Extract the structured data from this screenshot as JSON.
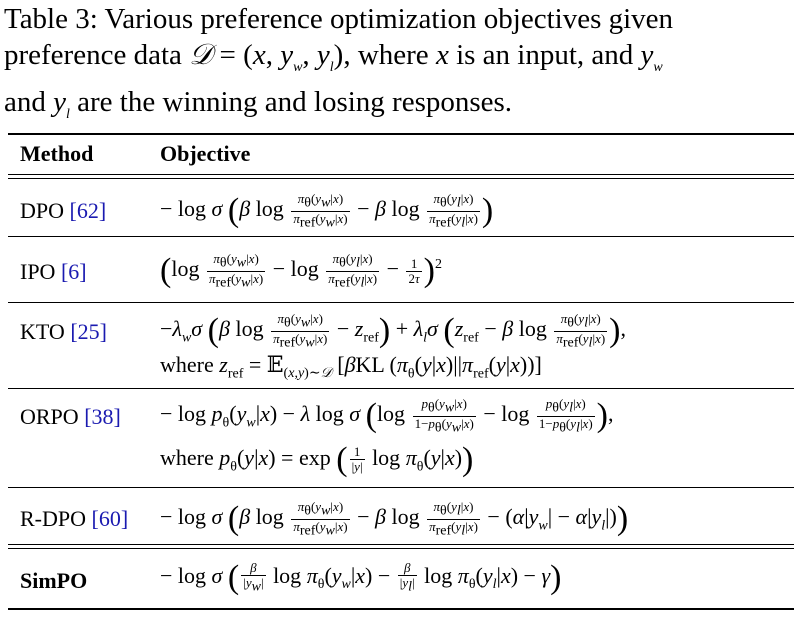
{
  "caption": {
    "line1": "Table 3:  Various preference optimization objectives given",
    "line2": "preference data 𝒟 = (x, y_w, y_l), where x is an input, and y_w",
    "line3": "and y_l are the winning and losing responses."
  },
  "table": {
    "headers": [
      "Method",
      "Objective"
    ],
    "rows": [
      {
        "method": "DPO ",
        "cite": "[62]",
        "formula": "−log σ (β log πθ(yw|x)/πref(yw|x) − β log πθ(yl|x)/πref(yl|x))"
      },
      {
        "method": "IPO ",
        "cite": "[6]",
        "formula": "(log πθ(yw|x)/πref(yw|x) − log πθ(yl|x)/πref(yl|x) − 1/2τ)²"
      },
      {
        "method": "KTO ",
        "cite": "[25]",
        "formula": "−λwσ (β log πθ(yw|x)/πref(yw|x) − zref) + λlσ (zref − β log πθ(yl|x)/πref(yl|x)),",
        "formula2": "where zref = 𝔼(x,y)∼𝒟 [βKL (πθ(y|x)||πref(y|x))]"
      },
      {
        "method": "ORPO ",
        "cite": "[38]",
        "formula": "−log pθ(yw|x) − λ log σ (log pθ(yw|x)/1−pθ(yw|x) − log pθ(yl|x)/1−pθ(yl|x)),",
        "formula2": "where pθ(y|x) = exp (1/|y| log πθ(y|x))"
      },
      {
        "method": "R-DPO ",
        "cite": "[60]",
        "formula": "−log σ (β log πθ(yw|x)/πref(yw|x) − β log πθ(yl|x)/πref(yl|x) − (α|yw| − α|yl|))"
      },
      {
        "method": "SimPO",
        "cite": "",
        "formula": "−log σ (β/|yw| log πθ(yw|x) − β/|yl| log πθ(yl|x) − γ)"
      }
    ]
  }
}
